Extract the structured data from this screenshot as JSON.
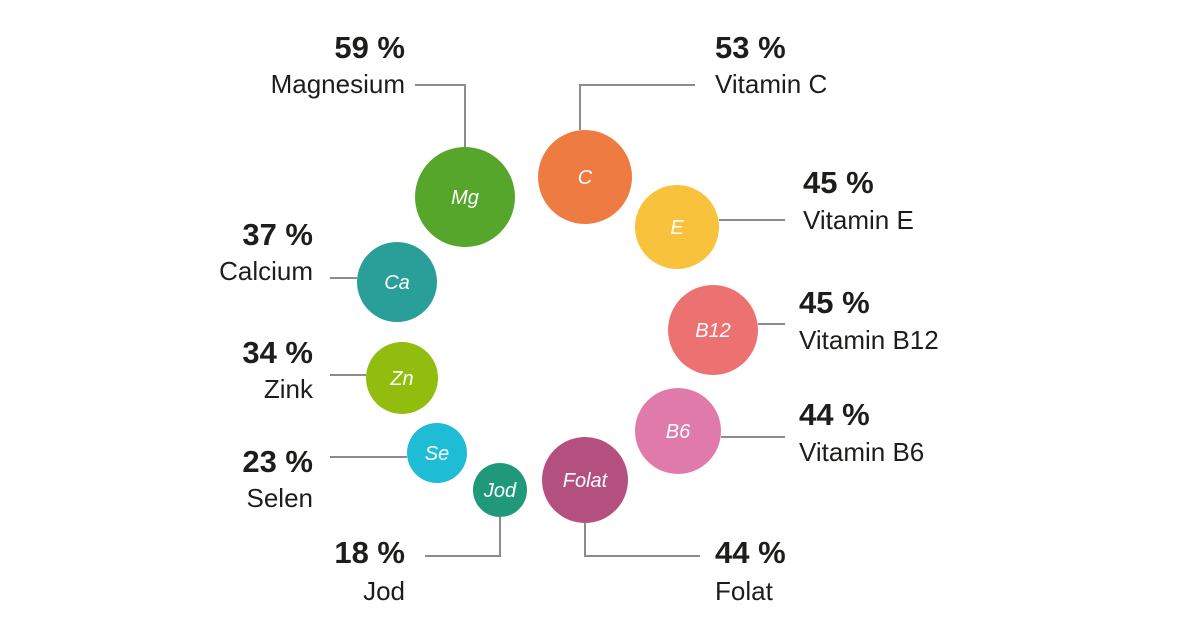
{
  "chart_data": {
    "type": "bubble",
    "unit": "%",
    "items": [
      {
        "symbol": "Mg",
        "name": "Magnesium",
        "percent": "59 %",
        "value": 59,
        "color": "#56a62c"
      },
      {
        "symbol": "C",
        "name": "Vitamin C",
        "percent": "53 %",
        "value": 53,
        "color": "#ed7b42"
      },
      {
        "symbol": "E",
        "name": "Vitamin E",
        "percent": "45 %",
        "value": 45,
        "color": "#f9c23c"
      },
      {
        "symbol": "B12",
        "name": "Vitamin B12",
        "percent": "45 %",
        "value": 45,
        "color": "#ec7272"
      },
      {
        "symbol": "B6",
        "name": "Vitamin B6",
        "percent": "44 %",
        "value": 44,
        "color": "#e07aab"
      },
      {
        "symbol": "Folat",
        "name": "Folat",
        "percent": "44 %",
        "value": 44,
        "color": "#b4507f"
      },
      {
        "symbol": "Jod",
        "name": "Jod",
        "percent": "18 %",
        "value": 18,
        "color": "#1f997a"
      },
      {
        "symbol": "Se",
        "name": "Selen",
        "percent": "23 %",
        "value": 23,
        "color": "#1fbcd6"
      },
      {
        "symbol": "Zn",
        "name": "Zink",
        "percent": "34 %",
        "value": 34,
        "color": "#92bd0e"
      },
      {
        "symbol": "Ca",
        "name": "Calcium",
        "percent": "37 %",
        "value": 37,
        "color": "#2a9f99"
      }
    ]
  }
}
